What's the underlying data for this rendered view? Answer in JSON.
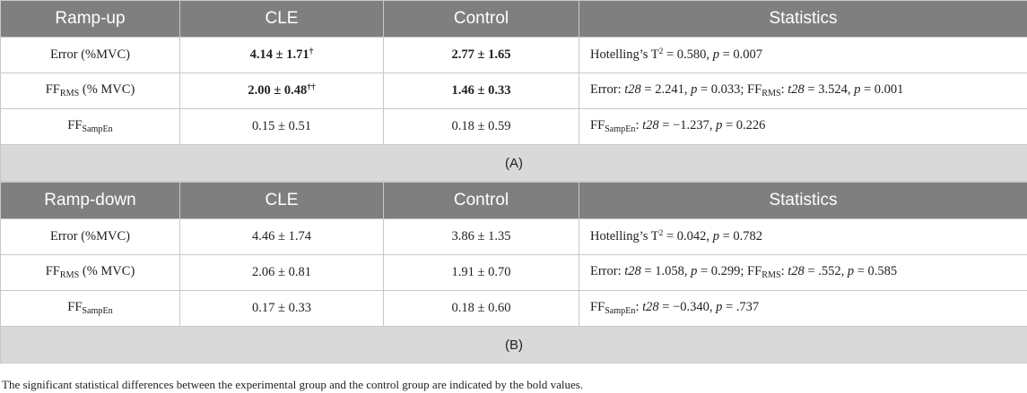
{
  "tables": [
    {
      "header": [
        "Ramp-up",
        "CLE",
        "Control",
        "Statistics"
      ],
      "rows": [
        [
          [
            {
              "t": "Error (%MVC)"
            }
          ],
          [
            {
              "t": "4.14 ± 1.71",
              "f": "b"
            },
            {
              "t": "†",
              "f": "b sup"
            }
          ],
          [
            {
              "t": "2.77 ± 1.65",
              "f": "b"
            }
          ],
          [
            {
              "t": "Hotelling’s T"
            },
            {
              "t": "2",
              "f": "sup"
            },
            {
              "t": " = 0.580, "
            },
            {
              "t": "p",
              "f": "i"
            },
            {
              "t": " = 0.007"
            }
          ]
        ],
        [
          [
            {
              "t": "FF"
            },
            {
              "t": "RMS",
              "f": "sub"
            },
            {
              "t": " (% MVC)"
            }
          ],
          [
            {
              "t": "2.00 ± 0.48",
              "f": "b"
            },
            {
              "t": "††",
              "f": "b sup"
            }
          ],
          [
            {
              "t": "1.46 ± 0.33",
              "f": "b"
            }
          ],
          [
            {
              "t": "Error: "
            },
            {
              "t": "t28",
              "f": "i"
            },
            {
              "t": " = 2.241, "
            },
            {
              "t": "p",
              "f": "i"
            },
            {
              "t": " = 0.033; FF"
            },
            {
              "t": "RMS",
              "f": "sub"
            },
            {
              "t": ": "
            },
            {
              "t": "t28",
              "f": "i"
            },
            {
              "t": " = 3.524, "
            },
            {
              "t": "p",
              "f": "i"
            },
            {
              "t": " = 0.001"
            }
          ]
        ],
        [
          [
            {
              "t": "FF"
            },
            {
              "t": "SampEn",
              "f": "sub"
            }
          ],
          [
            {
              "t": "0.15 ± 0.51"
            }
          ],
          [
            {
              "t": "0.18 ± 0.59"
            }
          ],
          [
            {
              "t": "FF"
            },
            {
              "t": "SampEn",
              "f": "sub"
            },
            {
              "t": ": "
            },
            {
              "t": "t28",
              "f": "i"
            },
            {
              "t": " = −1.237, "
            },
            {
              "t": "p",
              "f": "i"
            },
            {
              "t": " = 0.226"
            }
          ]
        ]
      ],
      "caption": "(A)"
    },
    {
      "header": [
        "Ramp-down",
        "CLE",
        "Control",
        "Statistics"
      ],
      "rows": [
        [
          [
            {
              "t": "Error (%MVC)"
            }
          ],
          [
            {
              "t": "4.46 ± 1.74"
            }
          ],
          [
            {
              "t": "3.86 ± 1.35"
            }
          ],
          [
            {
              "t": "Hotelling’s T"
            },
            {
              "t": "2",
              "f": "sup"
            },
            {
              "t": " = 0.042, "
            },
            {
              "t": "p",
              "f": "i"
            },
            {
              "t": " = 0.782"
            }
          ]
        ],
        [
          [
            {
              "t": "FF"
            },
            {
              "t": "RMS",
              "f": "sub"
            },
            {
              "t": " (% MVC)"
            }
          ],
          [
            {
              "t": "2.06 ± 0.81"
            }
          ],
          [
            {
              "t": "1.91 ± 0.70"
            }
          ],
          [
            {
              "t": "Error: "
            },
            {
              "t": "t28",
              "f": "i"
            },
            {
              "t": " = 1.058, "
            },
            {
              "t": "p",
              "f": "i"
            },
            {
              "t": " = 0.299; FF"
            },
            {
              "t": "RMS",
              "f": "sub"
            },
            {
              "t": ": "
            },
            {
              "t": "t28",
              "f": "i"
            },
            {
              "t": " = .552, "
            },
            {
              "t": "p",
              "f": "i"
            },
            {
              "t": " = 0.585"
            }
          ]
        ],
        [
          [
            {
              "t": "FF"
            },
            {
              "t": "SampEn",
              "f": "sub"
            }
          ],
          [
            {
              "t": "0.17 ± 0.33"
            }
          ],
          [
            {
              "t": "0.18 ± 0.60"
            }
          ],
          [
            {
              "t": "FF"
            },
            {
              "t": "SampEn",
              "f": "sub"
            },
            {
              "t": ": "
            },
            {
              "t": "t28",
              "f": "i"
            },
            {
              "t": " = −0.340, "
            },
            {
              "t": "p",
              "f": "i"
            },
            {
              "t": " = .737"
            }
          ]
        ]
      ],
      "caption": "(B)"
    }
  ],
  "footnote": "The significant statistical differences between the experimental group and the control group are indicated by the bold values."
}
